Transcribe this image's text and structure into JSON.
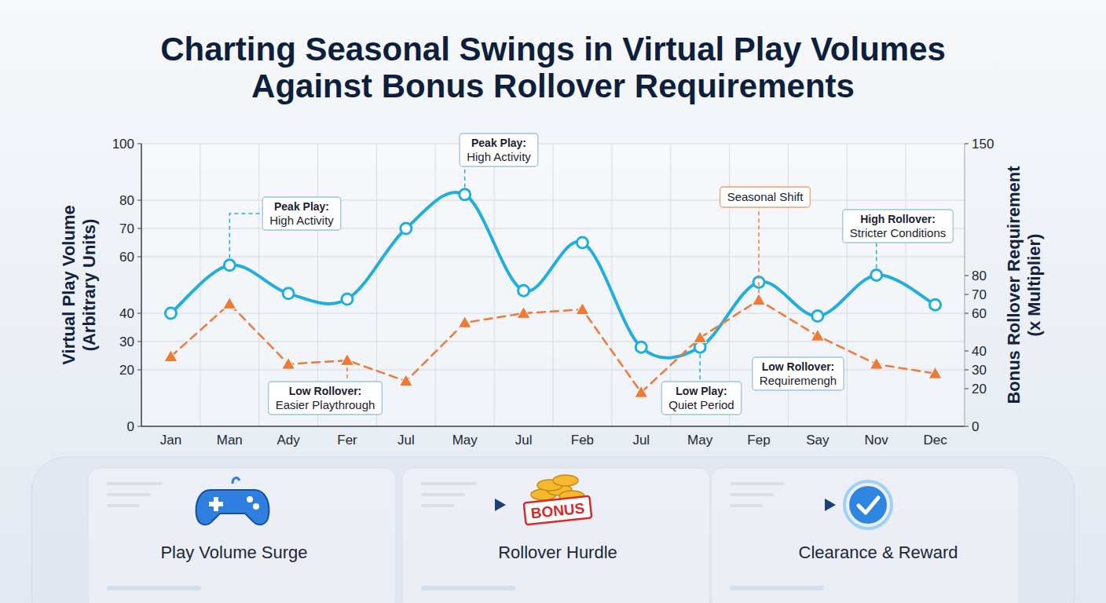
{
  "chart_data": {
    "type": "line",
    "title": "Charting Seasonal Swings in Virtual Play Volumes Against Bonus Rollover Requirements",
    "ylabel": "Virtual Play Volume (Arbitrary Units)",
    "y2label": "Bonus Rollover Requirement (x Multiplier)",
    "categories": [
      "Jan",
      "Man",
      "Ady",
      "Fer",
      "Jul",
      "May",
      "Jul",
      "Feb",
      "Jul",
      "May",
      "Fep",
      "Say",
      "Nov",
      "Dec"
    ],
    "series": [
      {
        "color": "#22aedc",
        "marker": "circle",
        "line_style": "smooth",
        "values": [
          40,
          57,
          47,
          45,
          70,
          82,
          48,
          65,
          28,
          28,
          51,
          39,
          53.5,
          43
        ]
      },
      {
        "color": "#ee7a3a",
        "marker": "triangle",
        "line_style": "dashed",
        "axis": "y2",
        "values": [
          37,
          65,
          33,
          35,
          24,
          55,
          60,
          62,
          18,
          47,
          67,
          48,
          33,
          28
        ]
      }
    ],
    "ylim": [
      0,
      100
    ],
    "yticks": [
      0,
      20,
      30,
      40,
      60,
      70,
      80,
      100
    ],
    "y2lim": [
      0,
      150
    ],
    "y2ticks": [
      0,
      20,
      30,
      40,
      60,
      70,
      80,
      150
    ],
    "grid": true,
    "annotations": [
      {
        "heading": "Peak Play:",
        "text": "High Activity"
      },
      {
        "heading": "Peak Play:",
        "text": "High Activity"
      },
      {
        "heading": "Low Rollover:",
        "text": "Easier Playthrough"
      },
      {
        "text": "Seasonal Shift"
      },
      {
        "heading": "High Rollover:",
        "text": "Stricter Conditions"
      },
      {
        "heading": "Low Rollover:",
        "text": "Requiremengh"
      },
      {
        "heading": "Low Play:",
        "text": "Quiet Period"
      }
    ],
    "flow": {
      "steps": [
        "Play Volume Surge",
        "Rollover Hurdle",
        "Clearance & Reward"
      ],
      "badge": "BONUS"
    }
  }
}
